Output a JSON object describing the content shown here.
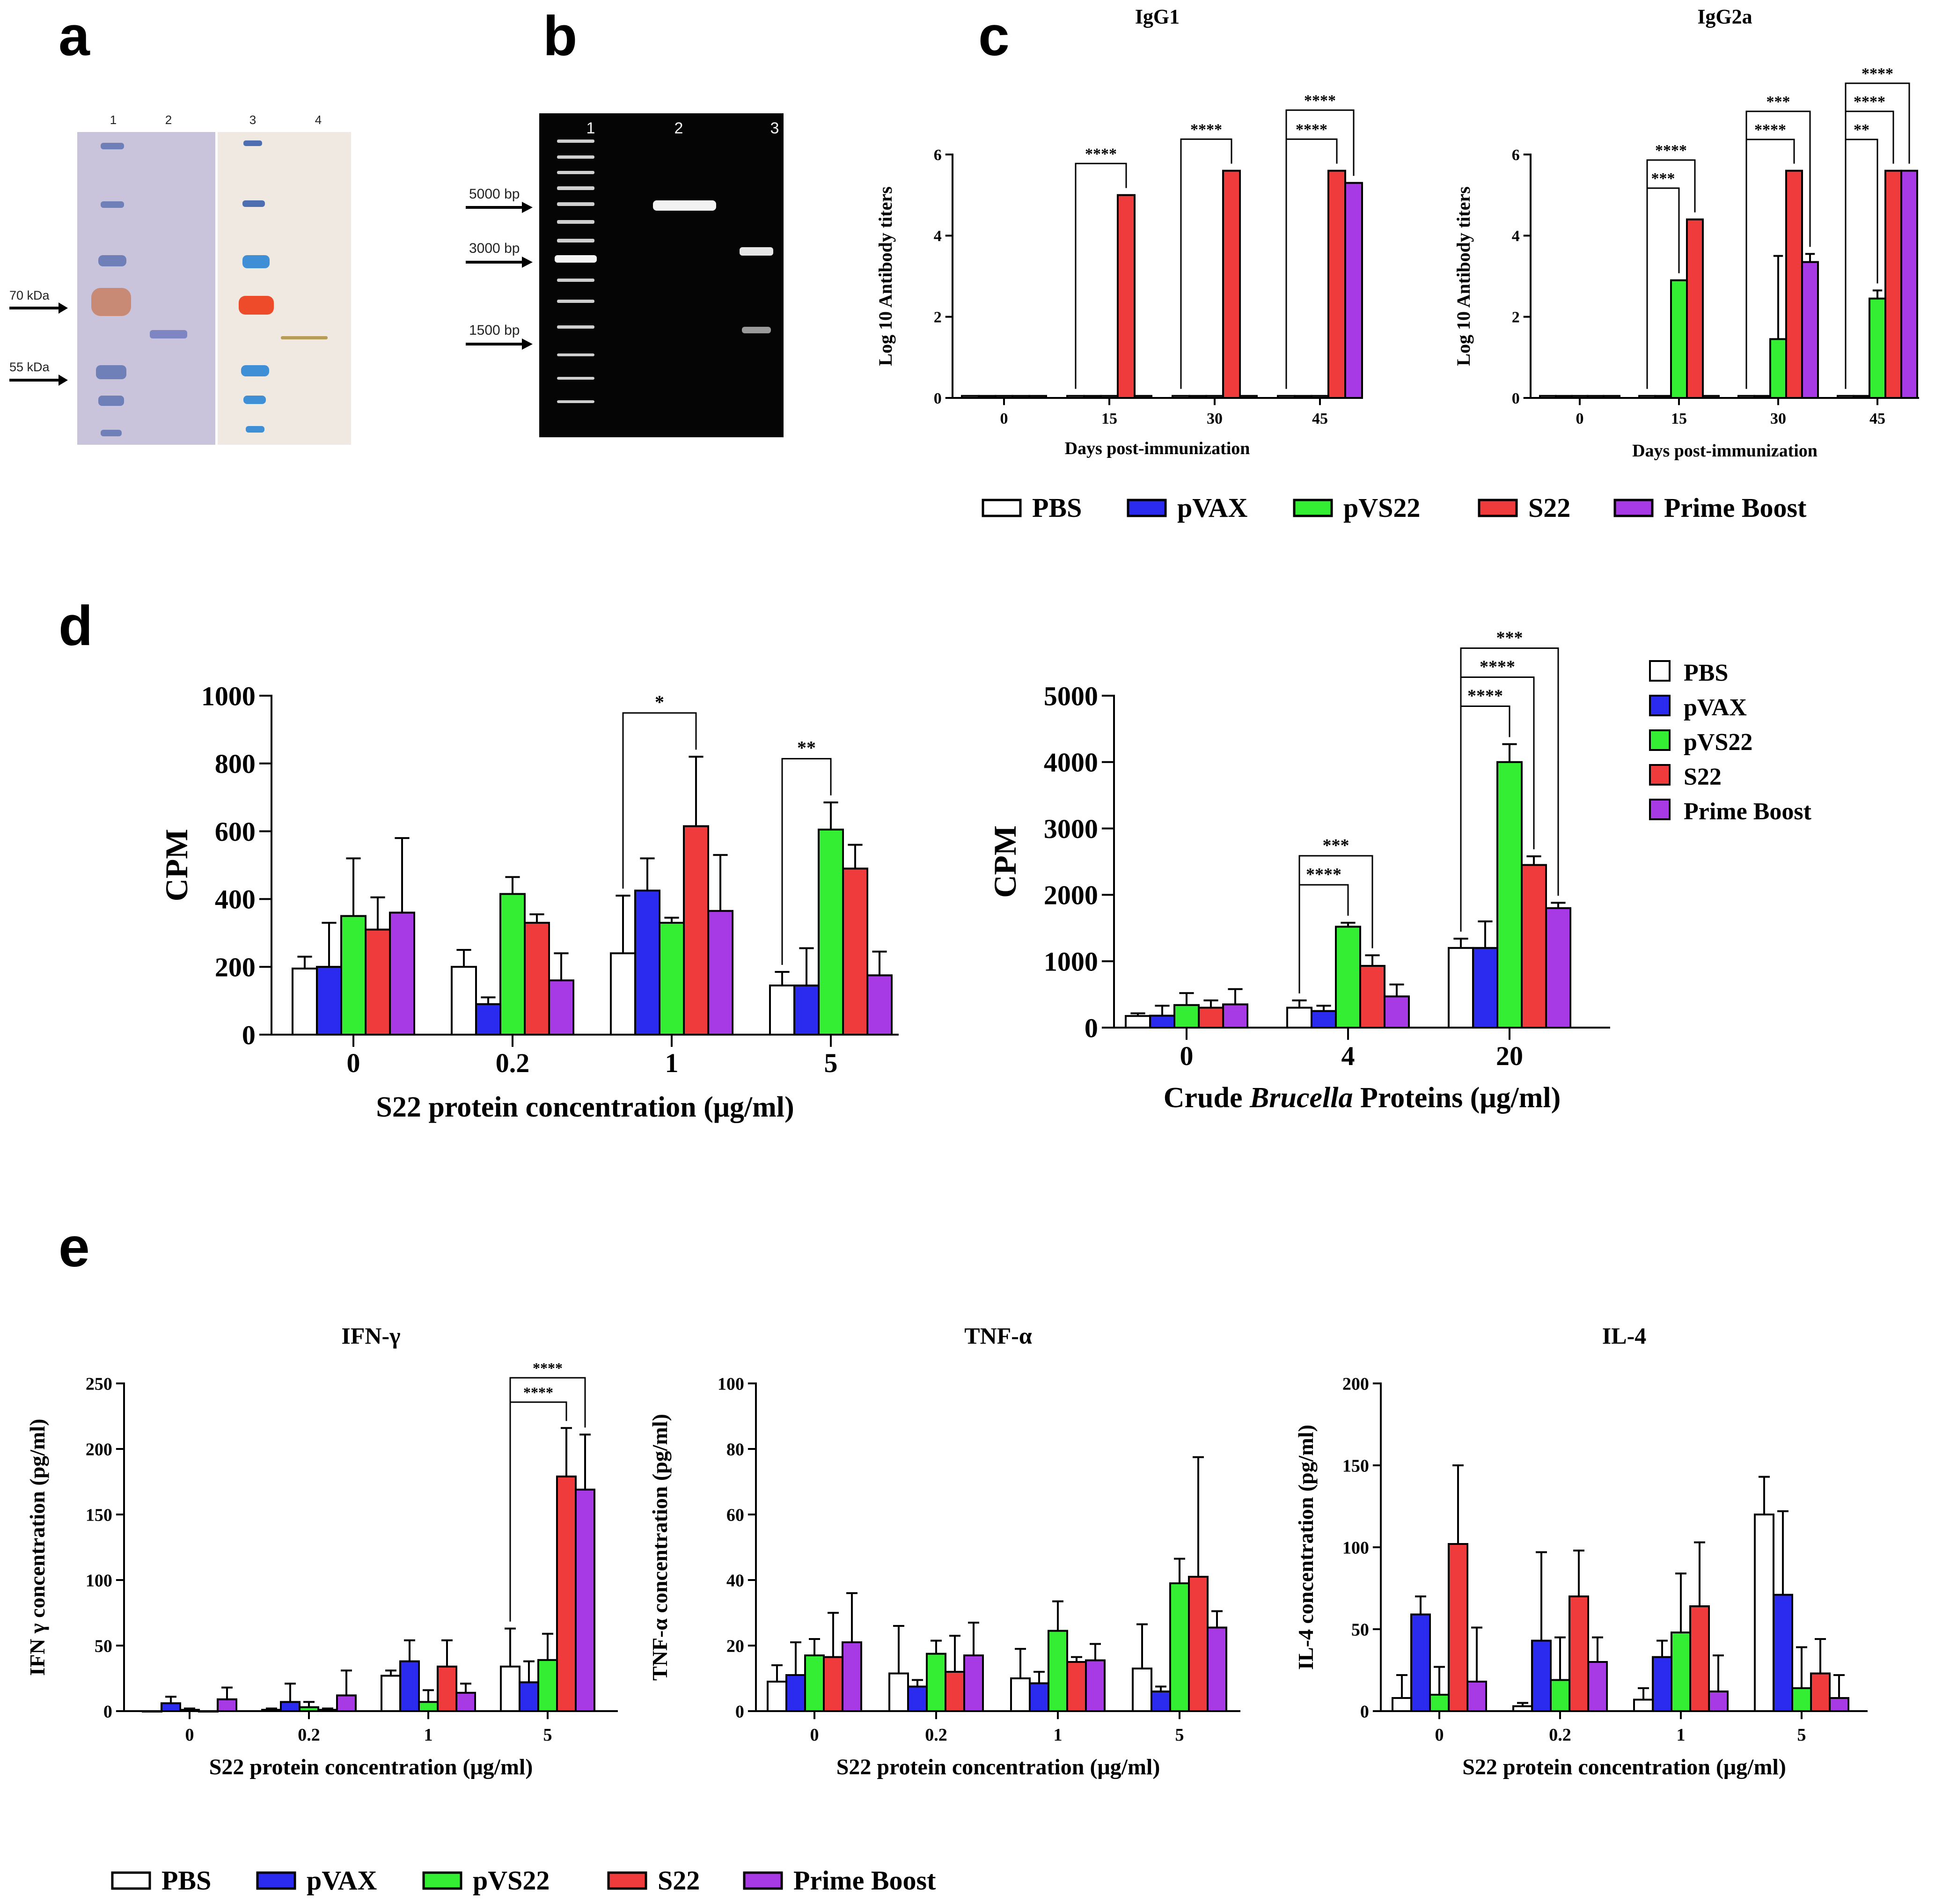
{
  "panels": {
    "a": "a",
    "b": "b",
    "c": "c",
    "d": "d",
    "e": "e"
  },
  "colors": {
    "PBS": "#ffffff",
    "pVAX": "#2b2bef",
    "pVS22": "#33ee33",
    "S22": "#ef3b3b",
    "Prime Boost": "#a83ae6"
  },
  "legend_labels": [
    "PBS",
    "pVAX",
    "pVS22",
    "S22",
    "Prime Boost"
  ],
  "panel_a": {
    "lane_numbers": [
      "1",
      "2",
      "3",
      "4"
    ],
    "markers": [
      {
        "label": "70 kDa"
      },
      {
        "label": "55 kDa"
      }
    ]
  },
  "panel_b": {
    "lane_numbers": [
      "1",
      "2",
      "3"
    ],
    "markers": [
      {
        "label": "5000 bp"
      },
      {
        "label": "3000 bp"
      },
      {
        "label": "1500 bp"
      }
    ]
  },
  "chart_data": [
    {
      "id": "c-igg1",
      "panel": "c",
      "type": "bar",
      "title": "IgG1",
      "xlabel": "Days post-immunization",
      "ylabel": "Log 10 Antibody titers",
      "ylim": [
        0,
        6
      ],
      "yticks": [
        "0",
        "2",
        "4",
        "6"
      ],
      "categories": [
        "0",
        "15",
        "30",
        "45"
      ],
      "series": [
        {
          "name": "PBS",
          "values": [
            0.05,
            0.05,
            0.05,
            0.05
          ],
          "errors": [
            0,
            0,
            0,
            0
          ]
        },
        {
          "name": "pVAX",
          "values": [
            0.05,
            0.05,
            0.05,
            0.05
          ],
          "errors": [
            0,
            0,
            0,
            0
          ]
        },
        {
          "name": "pVS22",
          "values": [
            0.05,
            0.05,
            0.05,
            0.05
          ],
          "errors": [
            0,
            0,
            0,
            0
          ]
        },
        {
          "name": "S22",
          "values": [
            0.05,
            5.0,
            5.6,
            5.6
          ],
          "errors": [
            0,
            0,
            0,
            0
          ]
        },
        {
          "name": "Prime Boost",
          "values": [
            0.05,
            0.05,
            0.05,
            5.3
          ],
          "errors": [
            0,
            0,
            0,
            0
          ]
        }
      ],
      "annotations": [
        {
          "group": 1,
          "from": 0,
          "to": 3,
          "label": "****",
          "level": 0
        },
        {
          "group": 2,
          "from": 0,
          "to": 3,
          "label": "****",
          "level": 0
        },
        {
          "group": 3,
          "from": 0,
          "to": 3,
          "label": "****",
          "level": 0
        },
        {
          "group": 3,
          "from": 0,
          "to": 4,
          "label": "****",
          "level": 1
        }
      ]
    },
    {
      "id": "c-igg2a",
      "panel": "c",
      "type": "bar",
      "title": "IgG2a",
      "xlabel": "Days post-immunization",
      "ylabel": "Log 10 Antibody titers",
      "ylim": [
        0,
        6
      ],
      "yticks": [
        "0",
        "2",
        "4",
        "6"
      ],
      "categories": [
        "0",
        "15",
        "30",
        "45"
      ],
      "series": [
        {
          "name": "PBS",
          "values": [
            0.05,
            0.05,
            0.05,
            0.05
          ],
          "errors": [
            0,
            0,
            0,
            0
          ]
        },
        {
          "name": "pVAX",
          "values": [
            0.05,
            0.05,
            0.05,
            0.05
          ],
          "errors": [
            0,
            0,
            0,
            0
          ]
        },
        {
          "name": "pVS22",
          "values": [
            0.05,
            2.9,
            1.45,
            2.45
          ],
          "errors": [
            0,
            0,
            2.05,
            0.2
          ]
        },
        {
          "name": "S22",
          "values": [
            0.05,
            4.4,
            5.6,
            5.6
          ],
          "errors": [
            0,
            0,
            0,
            0
          ]
        },
        {
          "name": "Prime Boost",
          "values": [
            0.05,
            0.05,
            3.35,
            5.6
          ],
          "errors": [
            0,
            0,
            0.2,
            0
          ]
        }
      ],
      "annotations": [
        {
          "group": 1,
          "from": 0,
          "to": 2,
          "label": "***",
          "level": 0
        },
        {
          "group": 1,
          "from": 0,
          "to": 3,
          "label": "****",
          "level": 1
        },
        {
          "group": 2,
          "from": 0,
          "to": 3,
          "label": "****",
          "level": 0
        },
        {
          "group": 2,
          "from": 0,
          "to": 4,
          "label": "***",
          "level": 1
        },
        {
          "group": 3,
          "from": 0,
          "to": 2,
          "label": "**",
          "level": 0
        },
        {
          "group": 3,
          "from": 0,
          "to": 3,
          "label": "****",
          "level": 1
        },
        {
          "group": 3,
          "from": 0,
          "to": 4,
          "label": "****",
          "level": 2
        }
      ]
    },
    {
      "id": "d-s22",
      "panel": "d",
      "type": "bar",
      "xlabel": "S22 protein concentration (μg/ml)",
      "ylabel": "CPM",
      "ylim": [
        0,
        1000
      ],
      "yticks": [
        "0",
        "200",
        "400",
        "600",
        "800",
        "1000"
      ],
      "categories": [
        "0",
        "0.2",
        "1",
        "5"
      ],
      "series": [
        {
          "name": "PBS",
          "values": [
            195,
            200,
            240,
            145
          ],
          "errors": [
            35,
            50,
            170,
            40
          ]
        },
        {
          "name": "pVAX",
          "values": [
            200,
            90,
            425,
            145
          ],
          "errors": [
            130,
            20,
            95,
            110
          ]
        },
        {
          "name": "pVS22",
          "values": [
            350,
            415,
            330,
            605
          ],
          "errors": [
            170,
            50,
            15,
            80
          ]
        },
        {
          "name": "S22",
          "values": [
            310,
            330,
            615,
            490
          ],
          "errors": [
            95,
            25,
            205,
            70
          ]
        },
        {
          "name": "Prime Boost",
          "values": [
            360,
            160,
            365,
            175
          ],
          "errors": [
            220,
            80,
            165,
            70
          ]
        }
      ],
      "annotations": [
        {
          "group": 2,
          "from": 0,
          "to": 3,
          "label": "*",
          "level": 0
        },
        {
          "group": 3,
          "from": 0,
          "to": 2,
          "label": "**",
          "level": 0
        }
      ]
    },
    {
      "id": "d-brucella",
      "panel": "d",
      "type": "bar",
      "xlabel": {
        "pre": "Crude ",
        "italic": "Brucella",
        "post": " Proteins (μg/ml)"
      },
      "ylabel": "CPM",
      "ylim": [
        0,
        5000
      ],
      "yticks": [
        "0",
        "1000",
        "2000",
        "3000",
        "4000",
        "5000"
      ],
      "categories": [
        "0",
        "4",
        "20"
      ],
      "series": [
        {
          "name": "PBS",
          "values": [
            175,
            300,
            1200
          ],
          "errors": [
            40,
            110,
            140
          ]
        },
        {
          "name": "pVAX",
          "values": [
            180,
            250,
            1200
          ],
          "errors": [
            150,
            80,
            400
          ]
        },
        {
          "name": "pVS22",
          "values": [
            340,
            1520,
            4000
          ],
          "errors": [
            180,
            60,
            270
          ]
        },
        {
          "name": "S22",
          "values": [
            300,
            930,
            2450
          ],
          "errors": [
            110,
            160,
            130
          ]
        },
        {
          "name": "Prime Boost",
          "values": [
            350,
            470,
            1800
          ],
          "errors": [
            230,
            180,
            80
          ]
        }
      ],
      "annotations": [
        {
          "group": 1,
          "from": 0,
          "to": 2,
          "label": "****",
          "level": 0
        },
        {
          "group": 1,
          "from": 0,
          "to": 3,
          "label": "***",
          "level": 1
        },
        {
          "group": 2,
          "from": 0,
          "to": 2,
          "label": "****",
          "level": 0
        },
        {
          "group": 2,
          "from": 0,
          "to": 3,
          "label": "****",
          "level": 1
        },
        {
          "group": 2,
          "from": 0,
          "to": 4,
          "label": "***",
          "level": 2
        }
      ]
    },
    {
      "id": "e-ifn",
      "panel": "e",
      "type": "bar",
      "title": "IFN-γ",
      "xlabel": "S22 protein concentration (μg/ml)",
      "ylabel": "IFN γ concentration (pg/ml)",
      "ylim": [
        0,
        250
      ],
      "yticks": [
        "0",
        "50",
        "100",
        "150",
        "200",
        "250"
      ],
      "categories": [
        "0",
        "0.2",
        "1",
        "5"
      ],
      "series": [
        {
          "name": "PBS",
          "values": [
            0,
            1,
            27,
            34
          ],
          "errors": [
            0,
            1,
            4,
            29
          ]
        },
        {
          "name": "pVAX",
          "values": [
            6,
            7,
            38,
            22
          ],
          "errors": [
            5,
            14,
            16,
            16
          ]
        },
        {
          "name": "pVS22",
          "values": [
            1,
            3,
            7,
            39
          ],
          "errors": [
            1,
            4,
            9,
            20
          ]
        },
        {
          "name": "S22",
          "values": [
            0,
            1,
            34,
            179
          ],
          "errors": [
            0,
            1,
            20,
            37
          ]
        },
        {
          "name": "Prime Boost",
          "values": [
            9,
            12,
            14,
            169
          ],
          "errors": [
            9,
            19,
            7,
            42
          ]
        }
      ],
      "annotations": [
        {
          "group": 3,
          "from": 0,
          "to": 3,
          "label": "****",
          "level": 0
        },
        {
          "group": 3,
          "from": 0,
          "to": 4,
          "label": "****",
          "level": 1
        }
      ]
    },
    {
      "id": "e-tnf",
      "panel": "e",
      "type": "bar",
      "title": "TNF-α",
      "xlabel": "S22 protein concentration (μg/ml)",
      "ylabel": "TNF-α concentration (pg/ml)",
      "ylim": [
        0,
        100
      ],
      "yticks": [
        "0",
        "20",
        "40",
        "60",
        "80",
        "100"
      ],
      "categories": [
        "0",
        "0.2",
        "1",
        "5"
      ],
      "series": [
        {
          "name": "PBS",
          "values": [
            9,
            11.5,
            10,
            13
          ],
          "errors": [
            5,
            14.5,
            9,
            13.5
          ]
        },
        {
          "name": "pVAX",
          "values": [
            11,
            7.5,
            8.5,
            6
          ],
          "errors": [
            10,
            2,
            3.5,
            1.5
          ]
        },
        {
          "name": "pVS22",
          "values": [
            17,
            17.5,
            24.5,
            39
          ],
          "errors": [
            5,
            4,
            9,
            7.5
          ]
        },
        {
          "name": "S22",
          "values": [
            16.5,
            12,
            15,
            41
          ],
          "errors": [
            13.5,
            11,
            1.5,
            36.5
          ]
        },
        {
          "name": "Prime Boost",
          "values": [
            21,
            17,
            15.5,
            25.5
          ],
          "errors": [
            15,
            10,
            5,
            5
          ]
        }
      ],
      "annotations": []
    },
    {
      "id": "e-il4",
      "panel": "e",
      "type": "bar",
      "title": "IL-4",
      "xlabel": "S22 protein concentration (μg/ml)",
      "ylabel": "IL-4 concentration (pg/ml)",
      "ylim": [
        0,
        200
      ],
      "yticks": [
        "0",
        "50",
        "100",
        "150",
        "200"
      ],
      "categories": [
        "0",
        "0.2",
        "1",
        "5"
      ],
      "series": [
        {
          "name": "PBS",
          "values": [
            8,
            3,
            7,
            120
          ],
          "errors": [
            14,
            2,
            7,
            23
          ]
        },
        {
          "name": "pVAX",
          "values": [
            59,
            43,
            33,
            71
          ],
          "errors": [
            11,
            54,
            10,
            51
          ]
        },
        {
          "name": "pVS22",
          "values": [
            10,
            19,
            48,
            14
          ],
          "errors": [
            17,
            26,
            36,
            25
          ]
        },
        {
          "name": "S22",
          "values": [
            102,
            70,
            64,
            23
          ],
          "errors": [
            48,
            28,
            39,
            21
          ]
        },
        {
          "name": "Prime Boost",
          "values": [
            18,
            30,
            12,
            8
          ],
          "errors": [
            33,
            15,
            22,
            14
          ]
        }
      ],
      "annotations": []
    }
  ]
}
